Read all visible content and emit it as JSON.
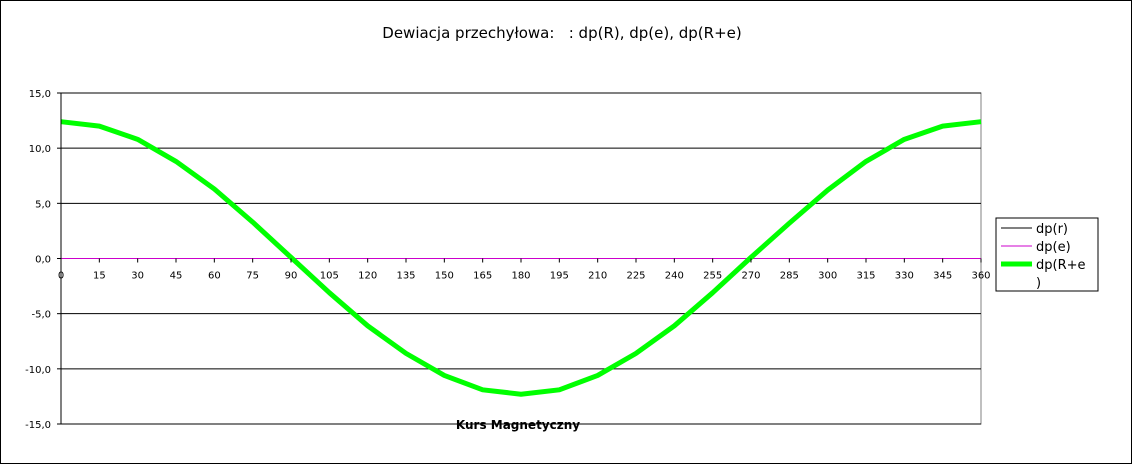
{
  "chart_data": {
    "type": "line",
    "title": "Dewiacja przechyłowa:   : dp(R), dp(e), dp(R+e)",
    "xlabel": "Kurs Magnetyczny",
    "ylabel": "",
    "xlim": [
      0,
      360
    ],
    "ylim": [
      -15,
      15
    ],
    "x": [
      0,
      15,
      30,
      45,
      60,
      75,
      90,
      105,
      120,
      135,
      150,
      165,
      180,
      195,
      210,
      225,
      240,
      255,
      270,
      285,
      300,
      315,
      330,
      345,
      360
    ],
    "x_tick_labels": [
      "0",
      "15",
      "30",
      "45",
      "60",
      "75",
      "90",
      "105",
      "120",
      "135",
      "150",
      "165",
      "180",
      "195",
      "210",
      "225",
      "240",
      "255",
      "270",
      "285",
      "300",
      "315",
      "330",
      "345",
      "360"
    ],
    "y_ticks": [
      15,
      10,
      5,
      0,
      -5,
      -10,
      -15
    ],
    "y_tick_labels": [
      "15,0",
      "10,0",
      "5,0",
      "0,0",
      "-5,0",
      "-10,0",
      "-15,0"
    ],
    "grid": "horizontal",
    "legend_position": "right",
    "series": [
      {
        "name": "dp(r)",
        "color": "#000000",
        "values": [
          0,
          0,
          0,
          0,
          0,
          0,
          0,
          0,
          0,
          0,
          0,
          0,
          0,
          0,
          0,
          0,
          0,
          0,
          0,
          0,
          0,
          0,
          0,
          0,
          0
        ]
      },
      {
        "name": "dp(e)",
        "color": "#cc00cc",
        "values": [
          0,
          0,
          0,
          0,
          0,
          0,
          0,
          0,
          0,
          0,
          0,
          0,
          0,
          0,
          0,
          0,
          0,
          0,
          0,
          0,
          0,
          0,
          0,
          0,
          0
        ]
      },
      {
        "name": "dp(R+e)",
        "legend_lines": [
          "dp(R+e",
          ")"
        ],
        "color": "#00ff00",
        "values": [
          12.4,
          12.0,
          10.8,
          8.8,
          6.3,
          3.3,
          0.1,
          -3.1,
          -6.1,
          -8.6,
          -10.6,
          -11.9,
          -12.3,
          -11.9,
          -10.6,
          -8.6,
          -6.1,
          -3.1,
          0.1,
          3.2,
          6.2,
          8.8,
          10.8,
          12.0,
          12.4
        ]
      }
    ]
  }
}
